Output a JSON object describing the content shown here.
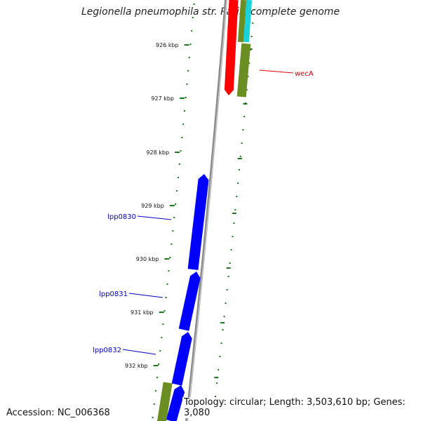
{
  "title": "Legionella pneumophila str. Paris, complete genome",
  "accession": "Accession: NC_006368",
  "summary": "Topology: circular; Length: 3,503,610 bp; Genes: 3,080",
  "colors": {
    "backbone": "#8a8a8a",
    "scale_ticks": "#1a7a1a",
    "gene_forward_blue": "#0000ff",
    "gene_red": "#ff0000",
    "gene_cyan": "#19d3dc",
    "gene_olive": "#6b8e23",
    "label_blue": "#0000cc",
    "label_red": "#dd0000"
  },
  "scale_labels": [
    "926 kbp",
    "927 kbp",
    "928 kbp",
    "929 kbp",
    "930 kbp",
    "931 kbp",
    "932 kbp"
  ],
  "gene_labels": [
    {
      "name": "wecA",
      "strand": "reverse"
    },
    {
      "name": "lpp0830",
      "strand": "forward"
    },
    {
      "name": "lpp0831",
      "strand": "forward"
    },
    {
      "name": "lpp0832",
      "strand": "forward"
    }
  ]
}
